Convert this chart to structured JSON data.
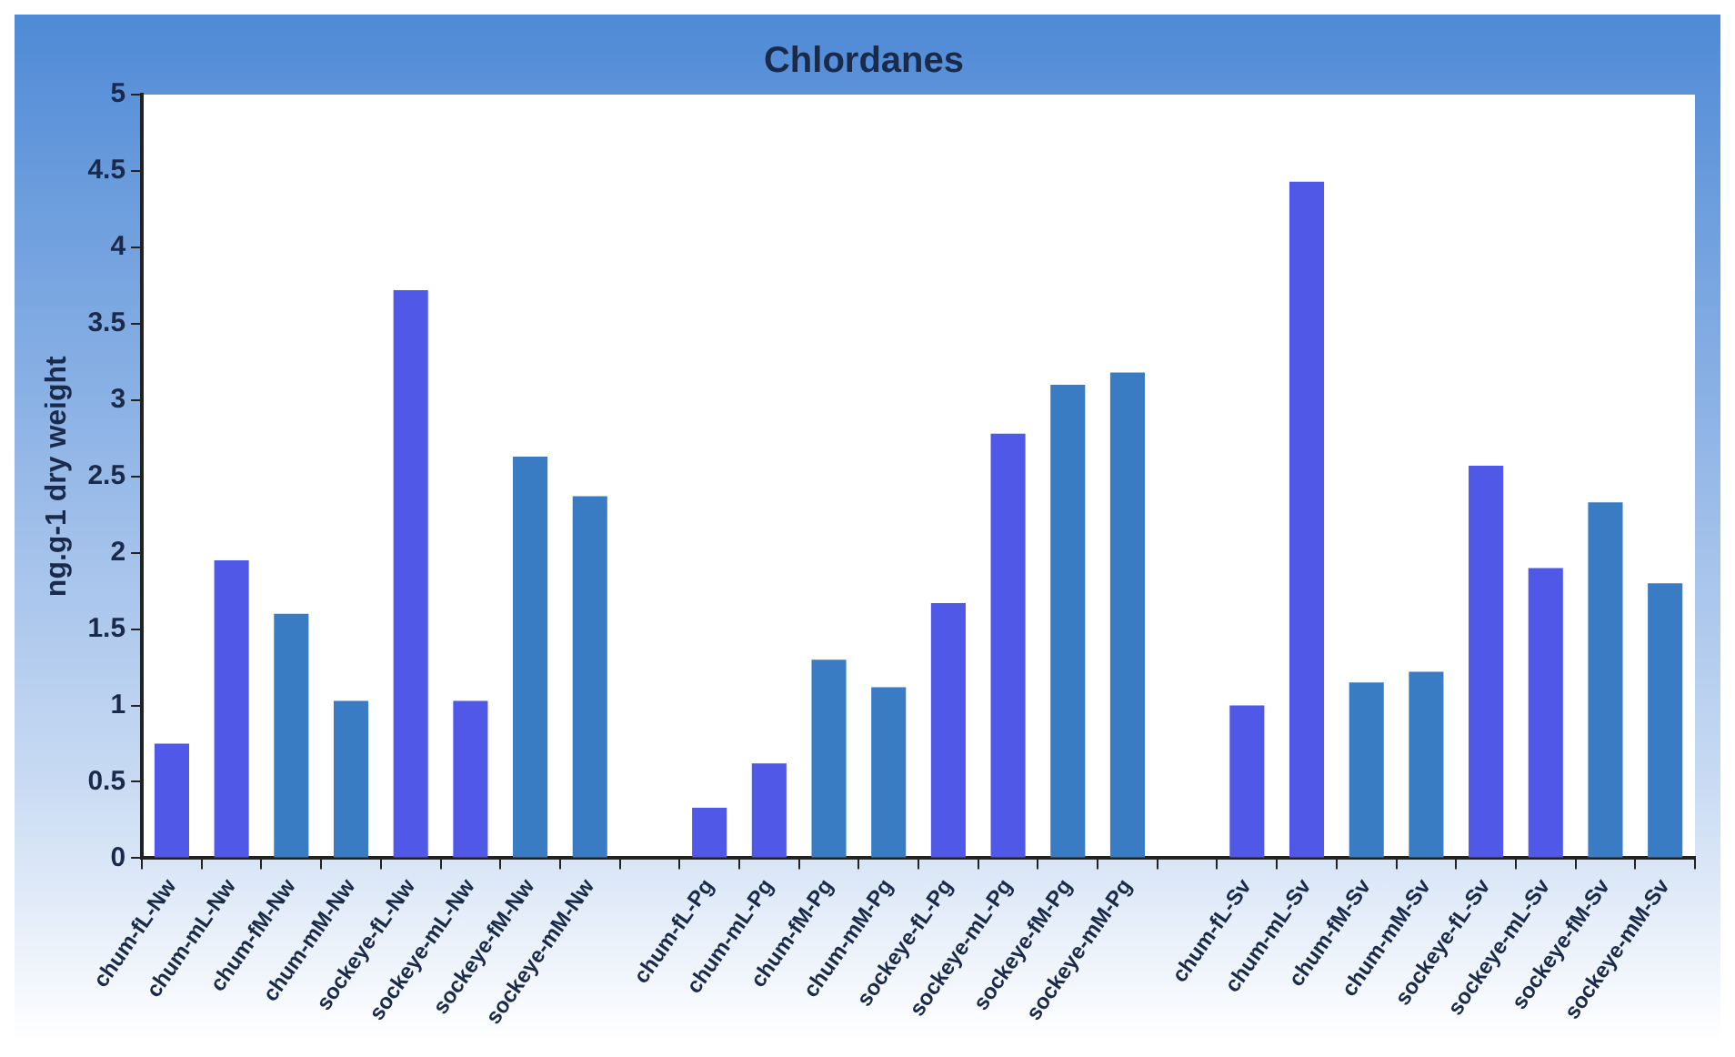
{
  "chart_data": {
    "type": "bar",
    "title": "Chlordanes",
    "ylabel": "ng.g-1 dry weight",
    "categories": [
      "chum-fL-Nw",
      "chum-mL-Nw",
      "chum-fM-Nw",
      "chum-mM-Nw",
      "sockeye-fL-Nw",
      "sockeye-mL-Nw",
      "sockeye-fM-Nw",
      "sockeye-mM-Nw",
      null,
      "chum-fL-Pg",
      "chum-mL-Pg",
      "chum-fM-Pg",
      "chum-mM-Pg",
      "sockeye-fL-Pg",
      "sockeye-mL-Pg",
      "sockeye-fM-Pg",
      "sockeye-mM-Pg",
      null,
      "chum-fL-Sv",
      "chum-mL-Sv",
      "chum-fM-Sv",
      "chum-mM-Sv",
      "sockeye-fL-Sv",
      "sockeye-mL-Sv",
      "sockeye-fM-Sv",
      "sockeye-mM-Sv"
    ],
    "values": [
      0.75,
      1.95,
      1.6,
      1.03,
      3.72,
      1.03,
      2.63,
      2.37,
      null,
      0.33,
      0.62,
      1.3,
      1.12,
      1.67,
      2.78,
      3.1,
      3.18,
      null,
      1.0,
      4.43,
      1.15,
      1.22,
      2.57,
      1.9,
      2.33,
      1.8
    ],
    "colors": [
      "#5058e8",
      "#5058e8",
      "#3a7cc4",
      "#3a7cc4",
      "#5058e8",
      "#5058e8",
      "#3a7cc4",
      "#3a7cc4",
      "#3a7cc4",
      "#5058e8",
      "#5058e8",
      "#3a7cc4",
      "#3a7cc4",
      "#5058e8",
      "#5058e8",
      "#3a7cc4",
      "#3a7cc4",
      "#3a7cc4",
      "#5058e8",
      "#5058e8",
      "#3a7cc4",
      "#3a7cc4",
      "#5058e8",
      "#5058e8",
      "#3a7cc4",
      "#3a7cc4"
    ],
    "ylim": [
      0,
      5
    ],
    "yticks": [
      0,
      0.5,
      1,
      1.5,
      2,
      2.5,
      3,
      3.5,
      4,
      4.5,
      5
    ],
    "grid": false,
    "legend": false
  }
}
